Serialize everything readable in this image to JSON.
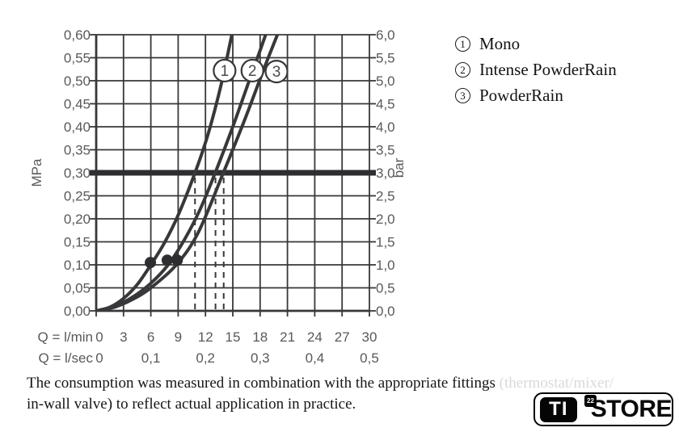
{
  "chart_data": {
    "type": "line",
    "title": "",
    "grid": true,
    "x_axis": {
      "header_lmin": "Q = l/min",
      "header_lsec": "Q = l/sec",
      "ticks_lmin": [
        "0",
        "3",
        "6",
        "9",
        "12",
        "15",
        "18",
        "21",
        "24",
        "27",
        "30"
      ],
      "ticks_lsec": [
        {
          "label": "0",
          "q": 0
        },
        {
          "label": "0,1",
          "q": 6
        },
        {
          "label": "0,2",
          "q": 12
        },
        {
          "label": "0,3",
          "q": 18
        },
        {
          "label": "0,4",
          "q": 24
        },
        {
          "label": "0,5",
          "q": 30
        }
      ],
      "range_lmin": [
        0,
        30
      ],
      "gridline_step_lmin": 3
    },
    "y_axis_left": {
      "unit": "MPa",
      "ticks": [
        "0,60",
        "0,55",
        "0,50",
        "0,45",
        "0,40",
        "0,35",
        "0,30",
        "0,25",
        "0,20",
        "0,15",
        "0,10",
        "0,05",
        "0,00"
      ],
      "range": [
        0,
        0.6
      ]
    },
    "y_axis_right": {
      "unit": "bar",
      "ticks": [
        "6,0",
        "5,5",
        "5,0",
        "4,5",
        "4,0",
        "3,5",
        "3,0",
        "2,5",
        "2,0",
        "1,5",
        "1,0",
        "0,5",
        "0,0"
      ],
      "range": [
        0,
        6
      ]
    },
    "reference_pressure_bar": 3.0,
    "dashed_flow_marks_lmin": [
      10.85,
      13.1,
      14.0
    ],
    "series": [
      {
        "id": "1",
        "name": "Mono",
        "points_lmin_bar": [
          [
            0,
            0
          ],
          [
            1.5,
            0.08
          ],
          [
            3,
            0.27
          ],
          [
            4.5,
            0.57
          ],
          [
            6,
            1.0
          ],
          [
            7.5,
            1.48
          ],
          [
            9,
            2.08
          ],
          [
            10.85,
            3.0
          ],
          [
            12.3,
            3.85
          ],
          [
            13.7,
            4.9
          ],
          [
            14.9,
            6.0
          ],
          [
            15.5,
            6.5
          ]
        ],
        "dot_lmin_bar": [
          5.95,
          1.05
        ],
        "label_circle_lmin_bar": [
          14.1,
          5.22
        ]
      },
      {
        "id": "2",
        "name": "Intense PowderRain",
        "points_lmin_bar": [
          [
            0,
            0
          ],
          [
            2,
            0.1
          ],
          [
            4,
            0.3
          ],
          [
            6,
            0.6
          ],
          [
            7.9,
            1.0
          ],
          [
            9.7,
            1.55
          ],
          [
            11.4,
            2.2
          ],
          [
            13.07,
            3.0
          ],
          [
            15,
            4.0
          ],
          [
            16.8,
            5.0
          ],
          [
            18.6,
            6.0
          ],
          [
            19.2,
            6.45
          ]
        ],
        "dot_lmin_bar": [
          7.8,
          1.1
        ],
        "label_circle_lmin_bar": [
          17.15,
          5.22
        ]
      },
      {
        "id": "3",
        "name": "PowderRain",
        "points_lmin_bar": [
          [
            0,
            0
          ],
          [
            2,
            0.08
          ],
          [
            4,
            0.25
          ],
          [
            6,
            0.5
          ],
          [
            8.8,
            1.0
          ],
          [
            11.2,
            1.7
          ],
          [
            13.96,
            3.0
          ],
          [
            16.4,
            4.2
          ],
          [
            18.5,
            5.3
          ],
          [
            20.3,
            6.2
          ]
        ],
        "dot_lmin_bar": [
          8.9,
          1.1
        ],
        "label_circle_lmin_bar": [
          19.8,
          5.2
        ]
      }
    ]
  },
  "legend": {
    "items": [
      {
        "num": "1",
        "label": "Mono"
      },
      {
        "num": "2",
        "label": "Intense PowderRain"
      },
      {
        "num": "3",
        "label": "PowderRain"
      }
    ]
  },
  "caption": {
    "line1": "The consumption was measured in combination with the appropriate fittings ",
    "line1_faded": "(thermostat/mixer/",
    "line2": "in-wall valve) to reflect actual application in practice."
  },
  "logo": {
    "box_text": "TI",
    "superscript": "22",
    "store_text": "STORE"
  },
  "colors": {
    "line": "#38383a",
    "reference_line": "#2e2e30",
    "axis_text": "#59595c",
    "text": "#141414",
    "background": "#ffffff"
  }
}
